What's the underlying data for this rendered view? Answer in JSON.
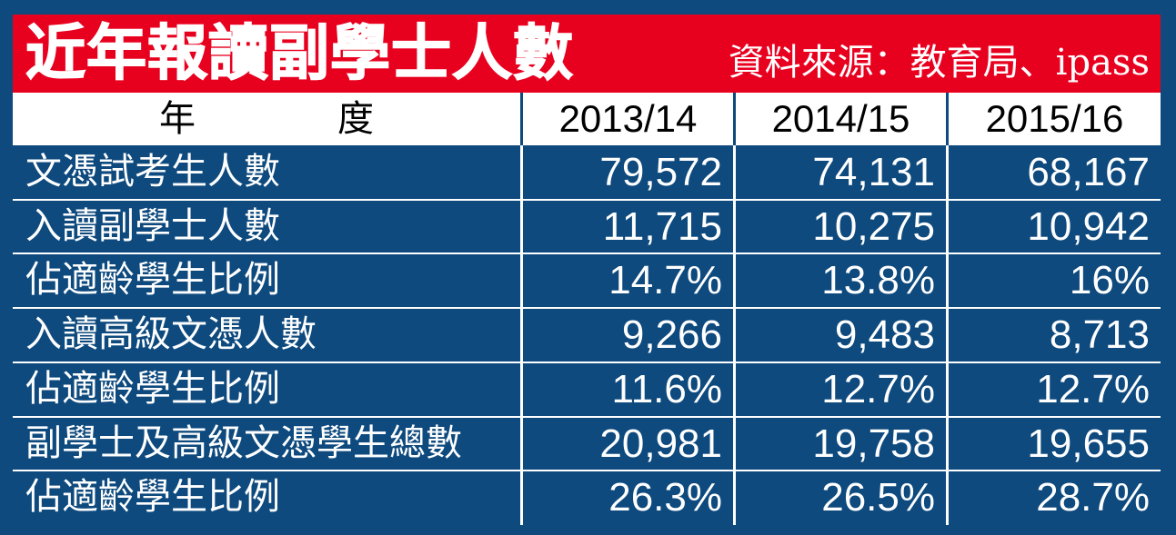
{
  "title": "近年報讀副學士人數",
  "source": "資料來源：教育局、ipass",
  "colors": {
    "title_bar": "#e8001f",
    "table_bg": "#0e4a7e",
    "header_bg": "#ffffff",
    "text": "#ffffff"
  },
  "chart_data": {
    "type": "table",
    "title": "近年報讀副學士人數",
    "columns": [
      "年　度",
      "2013/14",
      "2014/15",
      "2015/16"
    ],
    "rows": [
      {
        "label": "文憑試考生人數",
        "values": [
          "79,572",
          "74,131",
          "68,167"
        ]
      },
      {
        "label": "入讀副學士人數",
        "values": [
          "11,715",
          "10,275",
          "10,942"
        ]
      },
      {
        "label": "佔適齡學生比例",
        "values": [
          "14.7%",
          "13.8%",
          "16%"
        ]
      },
      {
        "label": "入讀高級文憑人數",
        "values": [
          "9,266",
          "9,483",
          "8,713"
        ]
      },
      {
        "label": "佔適齡學生比例",
        "values": [
          "11.6%",
          "12.7%",
          "12.7%"
        ]
      },
      {
        "label": "副學士及高級文憑學生總數",
        "values": [
          "20,981",
          "19,758",
          "19,655"
        ]
      },
      {
        "label": "佔適齡學生比例",
        "values": [
          "26.3%",
          "26.5%",
          "28.7%"
        ]
      }
    ]
  }
}
